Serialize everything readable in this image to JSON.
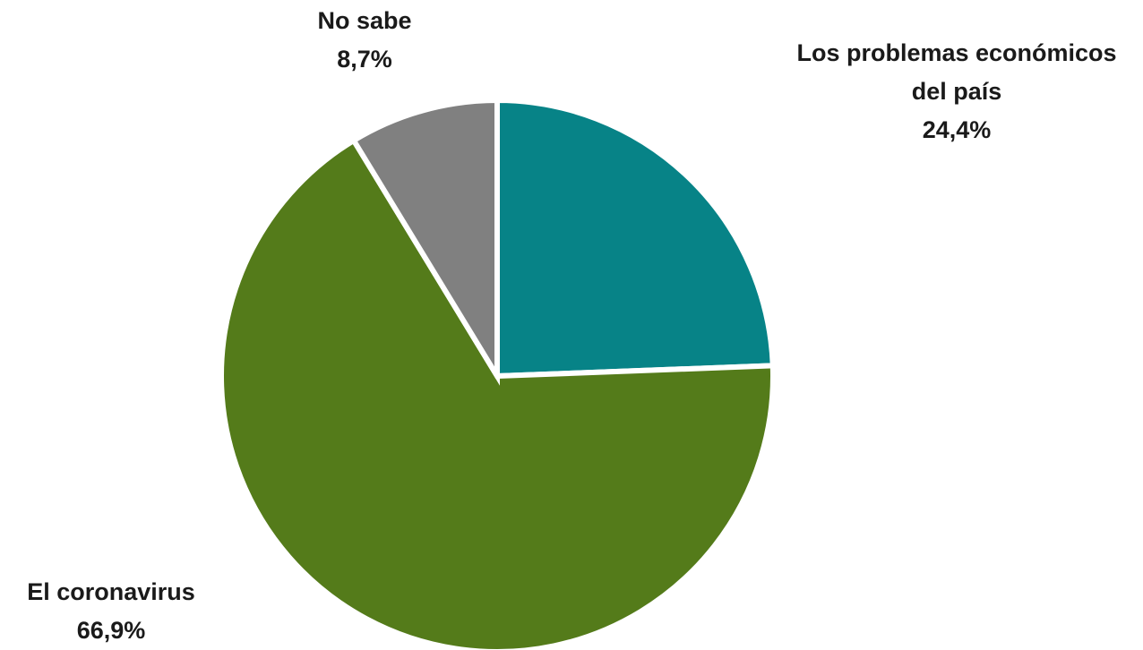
{
  "chart_data": {
    "type": "pie",
    "title": "",
    "start_angle_deg": 0,
    "direction": "clockwise",
    "slices": [
      {
        "label_lines": [
          "Los problemas económicos",
          "del país"
        ],
        "value_label": "24,4%",
        "value": 24.4,
        "color": "#078387"
      },
      {
        "label_lines": [
          "El coronavirus"
        ],
        "value_label": "66,9%",
        "value": 66.9,
        "color": "#547B1A"
      },
      {
        "label_lines": [
          "No sabe"
        ],
        "value_label": "8,7%",
        "value": 8.7,
        "color": "#808080"
      }
    ],
    "legend": "none"
  }
}
